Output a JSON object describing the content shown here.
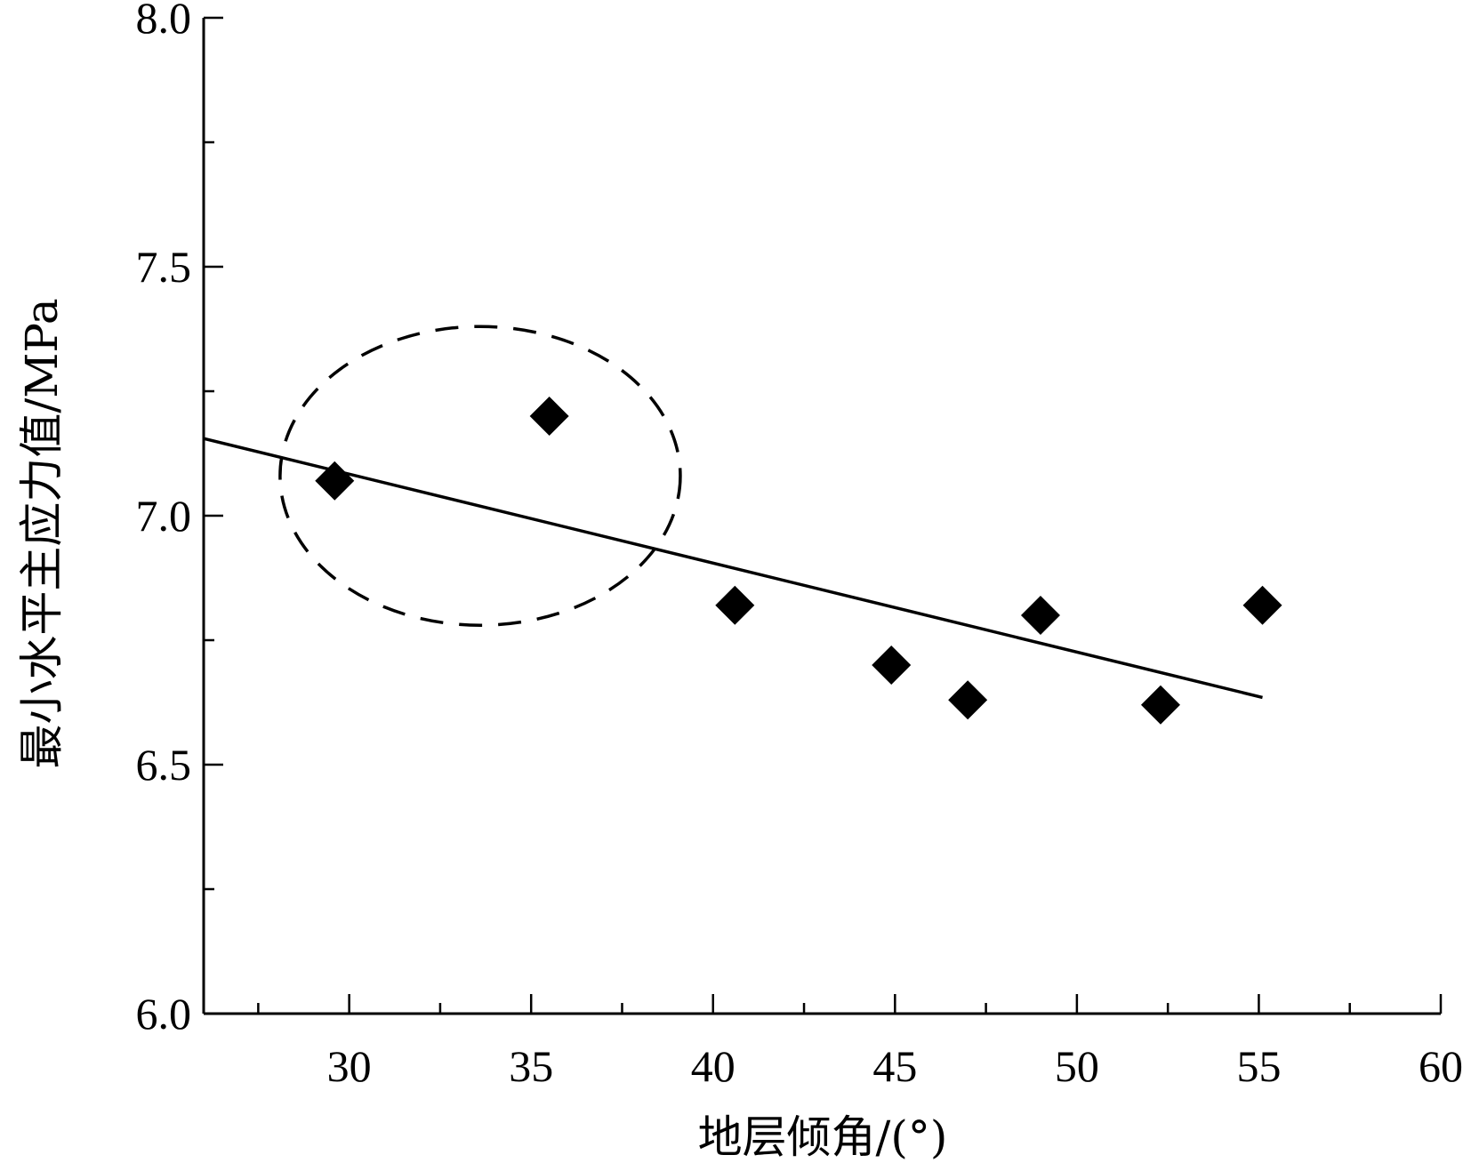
{
  "chart_data": {
    "type": "scatter",
    "xlabel": "地层倾角/(°)",
    "ylabel": "最小水平主应力值/MPa",
    "xlim": [
      26,
      60
    ],
    "ylim": [
      6.0,
      8.0
    ],
    "x_ticks": [
      30,
      35,
      40,
      45,
      50,
      55,
      60
    ],
    "x_tick_labels": [
      "30",
      "35",
      "40",
      "45",
      "50",
      "55",
      "60"
    ],
    "x_minor_ticks": [
      27.5,
      32.5,
      37.5,
      42.5,
      47.5,
      52.5,
      57.5
    ],
    "y_ticks": [
      6.0,
      6.5,
      7.0,
      7.5,
      8.0
    ],
    "y_tick_labels": [
      "6.0",
      "6.5",
      "7.0",
      "7.5",
      "8.0"
    ],
    "y_minor_ticks": [
      6.25,
      6.75,
      7.25,
      7.75
    ],
    "grid": false,
    "series": [
      {
        "marker": "diamond",
        "color": "#000000",
        "points": [
          {
            "x": 29.6,
            "y": 7.07
          },
          {
            "x": 35.5,
            "y": 7.2
          },
          {
            "x": 40.6,
            "y": 6.82
          },
          {
            "x": 44.9,
            "y": 6.7
          },
          {
            "x": 47.0,
            "y": 6.63
          },
          {
            "x": 49.0,
            "y": 6.8
          },
          {
            "x": 52.3,
            "y": 6.62
          },
          {
            "x": 55.1,
            "y": 6.82
          }
        ]
      }
    ],
    "trendline": {
      "type": "linear",
      "from": {
        "x": 26.0,
        "y": 7.155
      },
      "to": {
        "x": 55.1,
        "y": 6.635
      }
    },
    "highlight_ellipse": {
      "center": {
        "x": 33.6,
        "y": 7.08
      },
      "radius_x": 5.5,
      "radius_y": 0.3,
      "style": "dashed"
    }
  }
}
